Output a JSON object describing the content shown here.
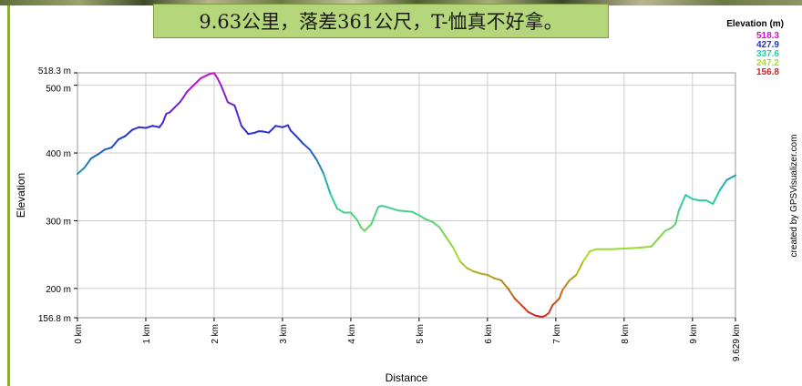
{
  "title": "9.63公里，落差361公尺，T-恤真不好拿。",
  "credit": "created by GPSVisualizer.com",
  "chart_data": {
    "type": "line",
    "xlabel": "Distance",
    "ylabel": "Elevation",
    "xlim": [
      0,
      9.629
    ],
    "ylim": [
      156.8,
      518.3
    ],
    "x_ticks": [
      0,
      1,
      2,
      3,
      4,
      5,
      6,
      7,
      8,
      9,
      9.629
    ],
    "x_tick_labels": [
      "0 km",
      "1 km",
      "2 km",
      "3 km",
      "4 km",
      "5 km",
      "6 km",
      "7 km",
      "8 km",
      "9 km",
      "9.629 km"
    ],
    "y_ticks": [
      156.8,
      200,
      300,
      400,
      500,
      518.3
    ],
    "y_tick_labels": [
      "156.8 m",
      "200 m",
      "300 m",
      "400 m",
      "500 m",
      "518.3 m"
    ],
    "grid": true,
    "legend": {
      "title": "Elevation (m)",
      "placement": "top-right",
      "entries": [
        {
          "label": "518.3",
          "color": "#cc11cc"
        },
        {
          "label": "427.9",
          "color": "#2233cc"
        },
        {
          "label": "337.6",
          "color": "#22ccaa"
        },
        {
          "label": "247.2",
          "color": "#aadd22"
        },
        {
          "label": "156.8",
          "color": "#cc2222"
        }
      ]
    },
    "series": [
      {
        "x": [
          0,
          0.1,
          0.2,
          0.3,
          0.4,
          0.5,
          0.6,
          0.7,
          0.8,
          0.9,
          1.0,
          1.1,
          1.2,
          1.25,
          1.3,
          1.35,
          1.4,
          1.45,
          1.5,
          1.55,
          1.6,
          1.7,
          1.8,
          1.9,
          1.95,
          2.0,
          2.05,
          2.1,
          2.2,
          2.3,
          2.4,
          2.5,
          2.6,
          2.65,
          2.7,
          2.8,
          2.9,
          3.0,
          3.08,
          3.12,
          3.2,
          3.3,
          3.4,
          3.5,
          3.6,
          3.7,
          3.8,
          3.9,
          4.0,
          4.1,
          4.15,
          4.2,
          4.3,
          4.4,
          4.45,
          4.5,
          4.6,
          4.7,
          4.8,
          4.9,
          5.0,
          5.1,
          5.2,
          5.3,
          5.4,
          5.5,
          5.6,
          5.7,
          5.8,
          5.9,
          6.0,
          6.1,
          6.2,
          6.3,
          6.4,
          6.5,
          6.6,
          6.7,
          6.8,
          6.85,
          6.9,
          6.95,
          7.0,
          7.05,
          7.1,
          7.2,
          7.3,
          7.4,
          7.5,
          7.6,
          7.7,
          7.8,
          8.0,
          8.2,
          8.4,
          8.6,
          8.7,
          8.75,
          8.8,
          8.9,
          8.95,
          9.0,
          9.1,
          9.2,
          9.3,
          9.4,
          9.5,
          9.629
        ],
        "y": [
          369,
          378,
          392,
          398,
          405,
          408,
          420,
          425,
          434,
          438,
          437,
          440,
          438,
          445,
          458,
          460,
          465,
          470,
          475,
          482,
          490,
          500,
          510,
          515,
          517,
          518,
          510,
          500,
          475,
          470,
          440,
          428,
          430,
          432,
          432,
          430,
          440,
          438,
          441,
          433,
          425,
          414,
          405,
          390,
          370,
          340,
          318,
          312,
          312,
          300,
          290,
          285,
          295,
          320,
          322,
          321,
          318,
          315,
          314,
          313,
          308,
          302,
          298,
          290,
          275,
          260,
          240,
          230,
          225,
          222,
          220,
          215,
          212,
          200,
          185,
          175,
          165,
          160,
          158,
          160,
          164,
          175,
          180,
          185,
          198,
          212,
          220,
          240,
          255,
          258,
          258,
          258,
          259,
          260,
          262,
          285,
          290,
          295,
          315,
          338,
          335,
          332,
          330,
          330,
          325,
          345,
          360,
          367
        ]
      }
    ]
  }
}
